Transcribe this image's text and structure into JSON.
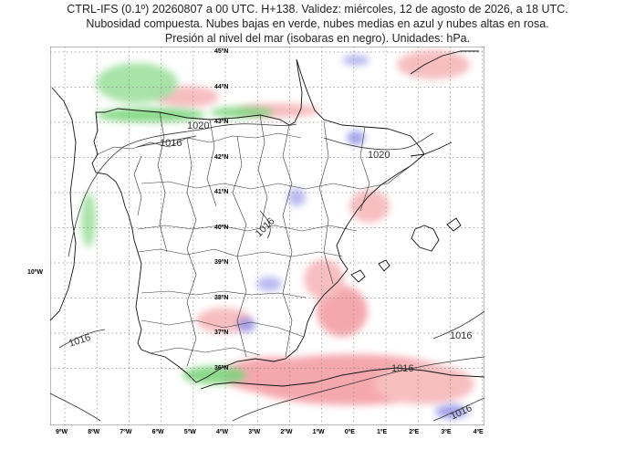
{
  "header": {
    "line1": "CTRL-IFS (0.1º) 20260807 a 00 UTC. H+138. Validez: miércoles, 12 de agosto de 2026, a 18 UTC.",
    "line2": "Nubosidad compuesta. Nubes bajas en verde, nubes medias en azul y nubes altas en rosa.",
    "line3": "Presión al nivel del mar (isobaras en negro). Unidades: hPa."
  },
  "map": {
    "lat_labels": [
      "45ºN",
      "44ºN",
      "43ºN",
      "42ºN",
      "41ºN",
      "40ºN",
      "39ºN",
      "38ºN",
      "37ºN",
      "36ºN"
    ],
    "lon_labels": [
      "9ºW",
      "8ºW",
      "7ºW",
      "6ºW",
      "5ºW",
      "4ºW",
      "3ºW",
      "2ºW",
      "1ºW",
      "0ºE",
      "1ºE",
      "2ºE",
      "3ºE",
      "4ºE"
    ],
    "side_label": "10ºW",
    "isobars": [
      "1020",
      "1016",
      "1020",
      "1016",
      "1016",
      "1016",
      "1016",
      "1016"
    ],
    "colors": {
      "low_clouds": "#7fd67f",
      "mid_clouds": "#8f8fe8",
      "high_clouds": "#f39aa0",
      "isobar": "#333333",
      "coast": "#111111",
      "grid": "#8a8a8a"
    }
  }
}
